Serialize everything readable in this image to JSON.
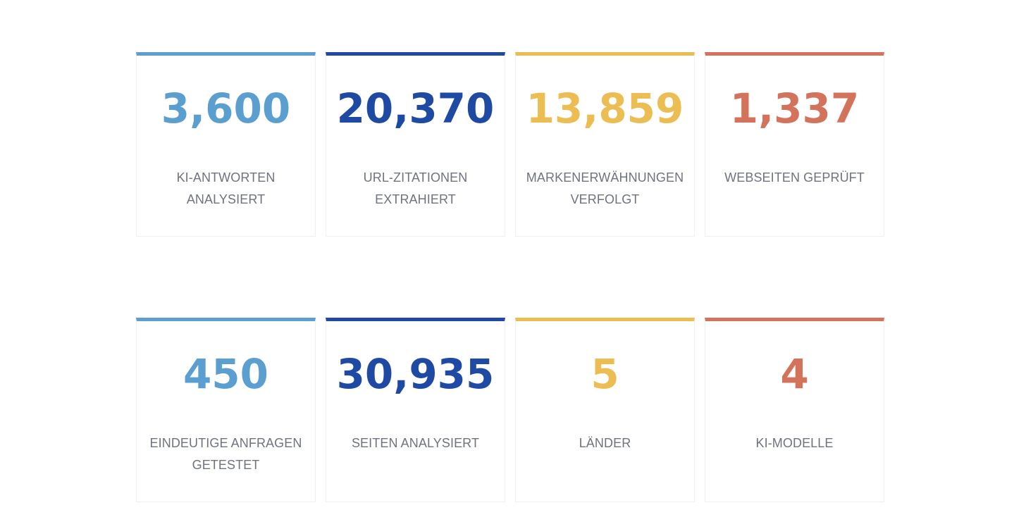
{
  "colors": {
    "blue": "#5a9fd0",
    "navy": "#1f4aa3",
    "yellow": "#ecbd53",
    "red": "#d4735c",
    "label": "#6f7380"
  },
  "stats": [
    {
      "value": "3,600",
      "label": "KI-ANTWORTEN ANALYSIERT",
      "color": "blue"
    },
    {
      "value": "20,370",
      "label": "URL-ZITATIONEN EXTRAHIERT",
      "color": "navy"
    },
    {
      "value": "13,859",
      "label": "MARKENERWÄHNUNGEN VERFOLGT",
      "color": "yellow"
    },
    {
      "value": "1,337",
      "label": "WEBSEITEN GEPRÜFT",
      "color": "red"
    },
    {
      "value": "450",
      "label": "EINDEUTIGE ANFRAGEN GETESTET",
      "color": "blue"
    },
    {
      "value": "30,935",
      "label": "SEITEN ANALYSIERT",
      "color": "navy"
    },
    {
      "value": "5",
      "label": "LÄNDER",
      "color": "yellow"
    },
    {
      "value": "4",
      "label": "KI-MODELLE",
      "color": "red"
    }
  ]
}
